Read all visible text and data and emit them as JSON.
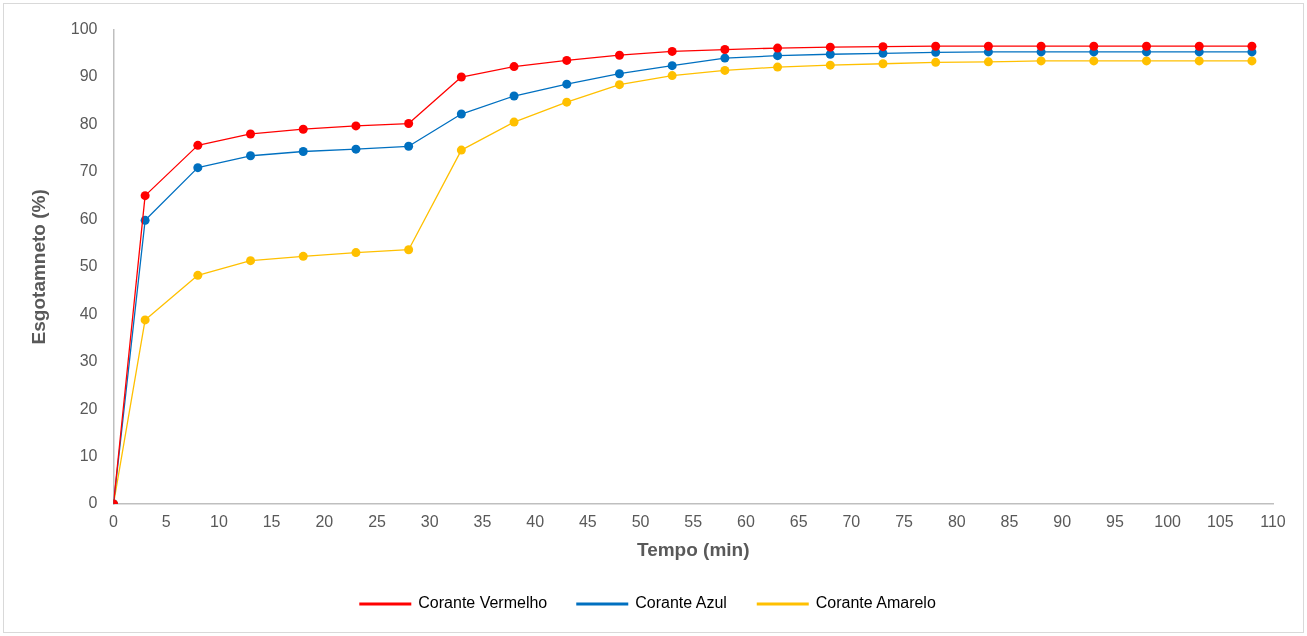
{
  "chart_data": {
    "type": "line",
    "xlabel": "Tempo (min)",
    "ylabel": "Esgotamneto (%)",
    "x": [
      0,
      3,
      8,
      13,
      18,
      23,
      28,
      33,
      38,
      43,
      48,
      53,
      58,
      63,
      68,
      73,
      78,
      83,
      88,
      93,
      98,
      103,
      108
    ],
    "xlim": [
      0,
      110
    ],
    "xticks": [
      0,
      5,
      10,
      15,
      20,
      25,
      30,
      35,
      40,
      45,
      50,
      55,
      60,
      65,
      70,
      75,
      80,
      85,
      90,
      95,
      100,
      105,
      110
    ],
    "ylim": [
      0,
      100
    ],
    "yticks": [
      0,
      10,
      20,
      30,
      40,
      50,
      60,
      70,
      80,
      90,
      100
    ],
    "grid": false,
    "legend": "bottom",
    "marker": "circle",
    "line_style": "solid",
    "series": [
      {
        "name": "Corante Vermelho",
        "color": "#ff0000",
        "values": [
          0,
          65,
          75.6,
          78,
          79,
          79.7,
          80.2,
          90,
          92.2,
          93.5,
          94.6,
          95.4,
          95.8,
          96.1,
          96.3,
          96.4,
          96.5,
          96.5,
          96.5,
          96.5,
          96.5,
          96.5,
          96.5
        ]
      },
      {
        "name": "Corante Azul",
        "color": "#0070c0",
        "values": [
          0,
          59.8,
          70.9,
          73.4,
          74.3,
          74.8,
          75.4,
          82.2,
          86,
          88.5,
          90.7,
          92.4,
          94,
          94.5,
          94.8,
          95,
          95.2,
          95.3,
          95.3,
          95.3,
          95.3,
          95.3,
          95.3
        ]
      },
      {
        "name": "Corante Amarelo",
        "color": "#ffc000",
        "values": [
          0,
          38.8,
          48.2,
          51.3,
          52.2,
          53,
          53.6,
          74.6,
          80.5,
          84.7,
          88.4,
          90.3,
          91.4,
          92.1,
          92.5,
          92.8,
          93.1,
          93.2,
          93.4,
          93.4,
          93.4,
          93.4,
          93.4
        ]
      }
    ]
  }
}
